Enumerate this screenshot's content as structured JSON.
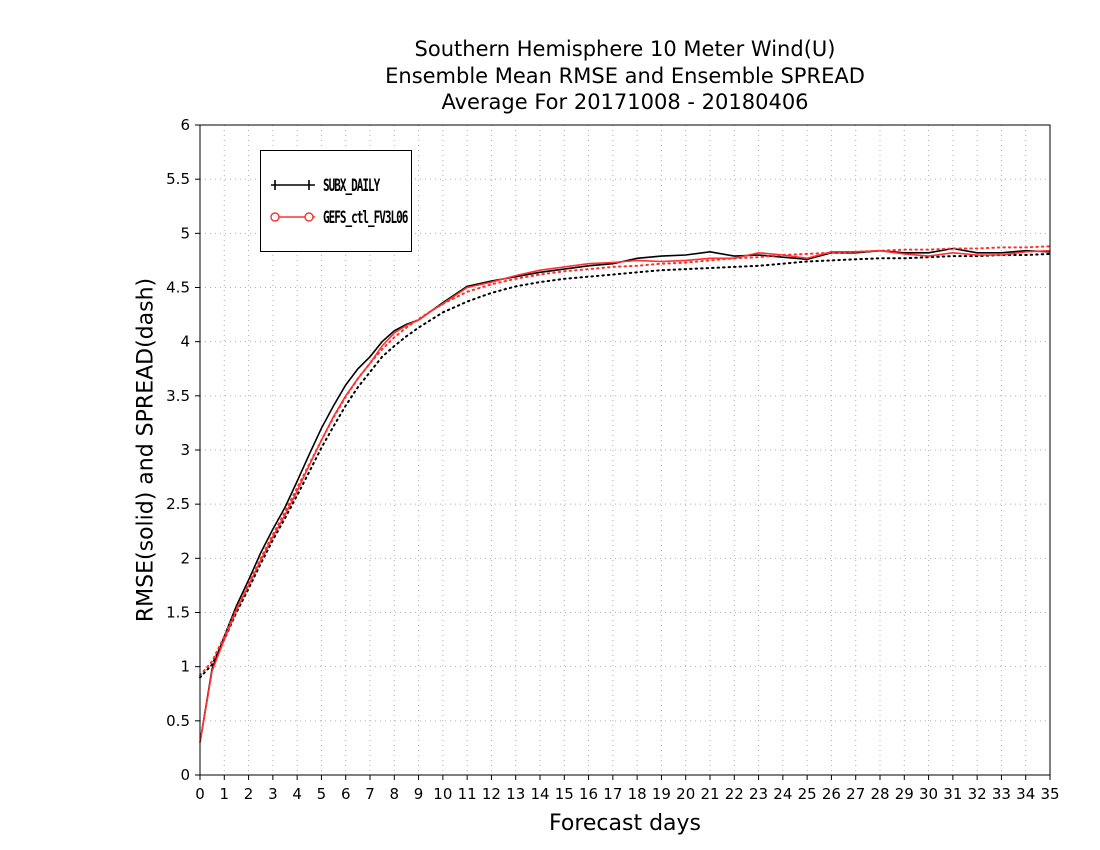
{
  "chart_data": {
    "type": "line",
    "title": [
      "Southern Hemisphere 10 Meter Wind(U)",
      "Ensemble Mean RMSE and Ensemble SPREAD",
      "Average For 20171008 - 20180406"
    ],
    "xlabel": "Forecast days",
    "ylabel": "RMSE(solid) and SPREAD(dash)",
    "xlim": [
      0,
      35
    ],
    "ylim": [
      0,
      6
    ],
    "xticks": [
      0,
      1,
      2,
      3,
      4,
      5,
      6,
      7,
      8,
      9,
      10,
      11,
      12,
      13,
      14,
      15,
      16,
      17,
      18,
      19,
      20,
      21,
      22,
      23,
      24,
      25,
      26,
      27,
      28,
      29,
      30,
      31,
      32,
      33,
      34,
      35
    ],
    "yticks": [
      0,
      0.5,
      1,
      1.5,
      2,
      2.5,
      3,
      3.5,
      4,
      4.5,
      5,
      5.5,
      6
    ],
    "grid": true,
    "legend_placement": "top-left",
    "x": [
      0,
      0.5,
      1,
      1.5,
      2,
      2.5,
      3,
      3.5,
      4,
      4.5,
      5,
      5.5,
      6,
      6.5,
      7,
      7.5,
      8,
      8.5,
      9,
      9.5,
      10,
      11,
      12,
      13,
      14,
      15,
      16,
      17,
      18,
      19,
      20,
      21,
      22,
      23,
      24,
      25,
      26,
      27,
      28,
      29,
      30,
      31,
      32,
      33,
      34,
      35
    ],
    "series": [
      {
        "name": "SUBX_DAILY",
        "color": "#000000",
        "marker": "plus",
        "rmse": [
          0.3,
          0.98,
          1.28,
          1.56,
          1.8,
          2.05,
          2.27,
          2.47,
          2.71,
          2.96,
          3.2,
          3.41,
          3.6,
          3.75,
          3.86,
          4.0,
          4.1,
          4.16,
          4.2,
          4.28,
          4.36,
          4.51,
          4.56,
          4.6,
          4.64,
          4.67,
          4.7,
          4.72,
          4.77,
          4.79,
          4.8,
          4.83,
          4.79,
          4.8,
          4.78,
          4.76,
          4.82,
          4.82,
          4.84,
          4.82,
          4.82,
          4.86,
          4.82,
          4.82,
          4.84,
          4.83
        ],
        "spread": [
          0.9,
          1.02,
          1.25,
          1.5,
          1.72,
          1.95,
          2.17,
          2.37,
          2.58,
          2.8,
          3.02,
          3.22,
          3.41,
          3.58,
          3.72,
          3.86,
          3.96,
          4.05,
          4.13,
          4.2,
          4.27,
          4.37,
          4.45,
          4.51,
          4.55,
          4.58,
          4.6,
          4.62,
          4.64,
          4.66,
          4.67,
          4.68,
          4.69,
          4.7,
          4.72,
          4.74,
          4.75,
          4.76,
          4.77,
          4.77,
          4.78,
          4.79,
          4.79,
          4.8,
          4.8,
          4.81
        ]
      },
      {
        "name": "GEFS_ctl_FV3L06",
        "color": "#ff3030",
        "marker": "circle",
        "rmse": [
          0.3,
          0.96,
          1.25,
          1.52,
          1.75,
          1.98,
          2.2,
          2.4,
          2.62,
          2.86,
          3.09,
          3.31,
          3.5,
          3.66,
          3.8,
          3.96,
          4.08,
          4.15,
          4.2,
          4.28,
          4.35,
          4.5,
          4.55,
          4.61,
          4.66,
          4.69,
          4.72,
          4.73,
          4.75,
          4.74,
          4.75,
          4.77,
          4.77,
          4.82,
          4.8,
          4.77,
          4.83,
          4.83,
          4.84,
          4.81,
          4.79,
          4.82,
          4.8,
          4.8,
          4.83,
          4.84
        ],
        "spread": [
          0.92,
          1.05,
          1.28,
          1.53,
          1.76,
          2.0,
          2.22,
          2.43,
          2.65,
          2.87,
          3.09,
          3.3,
          3.49,
          3.66,
          3.8,
          3.93,
          4.04,
          4.13,
          4.21,
          4.28,
          4.35,
          4.46,
          4.53,
          4.58,
          4.62,
          4.65,
          4.67,
          4.69,
          4.7,
          4.72,
          4.73,
          4.75,
          4.77,
          4.78,
          4.8,
          4.81,
          4.82,
          4.83,
          4.84,
          4.85,
          4.85,
          4.86,
          4.86,
          4.87,
          4.87,
          4.88
        ]
      }
    ]
  }
}
